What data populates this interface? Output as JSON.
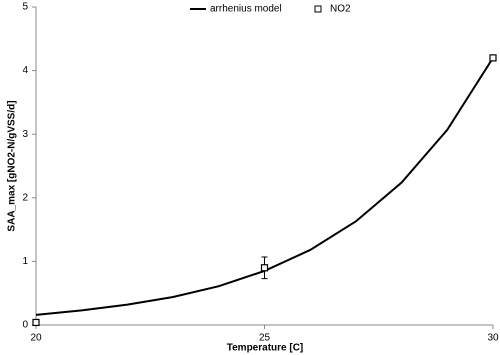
{
  "chart_data": {
    "type": "line",
    "x_label": "Temperature [C]",
    "y_label": "SAA_max [gNO2-N/gVSS/d]",
    "xlim": [
      20,
      30
    ],
    "xticks": [
      20,
      25,
      30
    ],
    "ylim": [
      0,
      5
    ],
    "yticks": [
      0,
      1,
      2,
      3,
      4,
      5
    ],
    "grid": false,
    "legend": "top",
    "series": [
      {
        "name": "arrhenius model",
        "color": "#000000",
        "mode": "line",
        "x": [
          20,
          21,
          22,
          23,
          24,
          25,
          26,
          27,
          28,
          29,
          30
        ],
        "values": [
          0.16,
          0.23,
          0.32,
          0.44,
          0.61,
          0.85,
          1.18,
          1.63,
          2.24,
          3.07,
          4.2
        ]
      },
      {
        "name": "NO2",
        "color": "#000000",
        "mode": "markers",
        "x": [
          20,
          25,
          30
        ],
        "values": [
          0.04,
          0.9,
          4.2
        ],
        "errors": [
          null,
          0.17,
          null
        ]
      }
    ]
  }
}
